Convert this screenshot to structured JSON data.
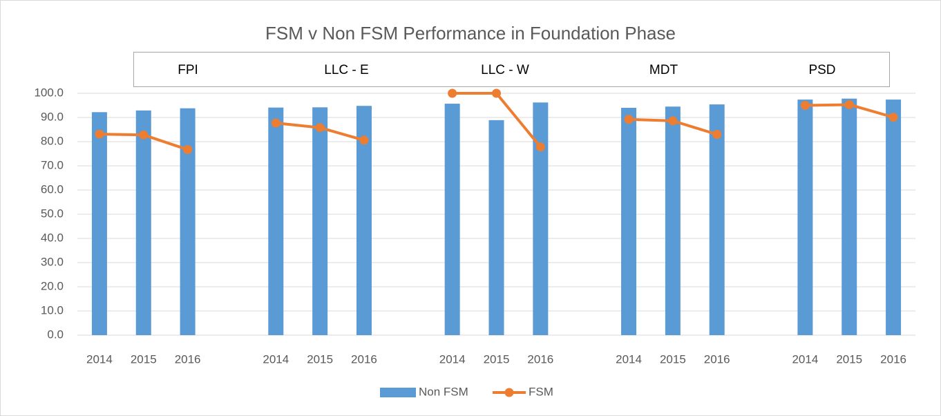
{
  "chart_data": {
    "type": "bar_line",
    "title": "FSM v Non FSM Performance in Foundation Phase",
    "groups": [
      "FPI",
      "LLC - E",
      "LLC - W",
      "MDT",
      "PSD"
    ],
    "categories": [
      "2014",
      "2015",
      "2016",
      null,
      "2014",
      "2015",
      "2016",
      null,
      "2014",
      "2015",
      "2016",
      null,
      "2014",
      "2015",
      "2016",
      null,
      "2014",
      "2015",
      "2016"
    ],
    "series": [
      {
        "name": "Non FSM",
        "type": "bar",
        "color": "#5b9bd5",
        "values": [
          92.2,
          92.9,
          93.8,
          null,
          94.1,
          94.2,
          94.8,
          null,
          95.7,
          88.9,
          96.2,
          null,
          94.0,
          94.5,
          95.4,
          null,
          97.4,
          97.8,
          97.4
        ]
      },
      {
        "name": "FSM",
        "type": "line",
        "color": "#ed7d31",
        "values": [
          83.1,
          82.8,
          76.7,
          null,
          87.7,
          85.8,
          80.6,
          null,
          100,
          100,
          77.8,
          null,
          89.2,
          88.6,
          83.0,
          null,
          95.0,
          95.3,
          90.1
        ]
      }
    ],
    "ylim": [
      0,
      100
    ],
    "yticks": [
      {
        "value": 0,
        "label": "0.0"
      },
      {
        "value": 10,
        "label": "10.0"
      },
      {
        "value": 20,
        "label": "20.0"
      },
      {
        "value": 30,
        "label": "30.0"
      },
      {
        "value": 40,
        "label": "40.0"
      },
      {
        "value": 50,
        "label": "50.0"
      },
      {
        "value": 60,
        "label": "60.0"
      },
      {
        "value": 70,
        "label": "70.0"
      },
      {
        "value": 80,
        "label": "80.0"
      },
      {
        "value": 90,
        "label": "90.0"
      },
      {
        "value": 100,
        "label": "100.0"
      }
    ],
    "grid": true,
    "legend": "bottom"
  }
}
